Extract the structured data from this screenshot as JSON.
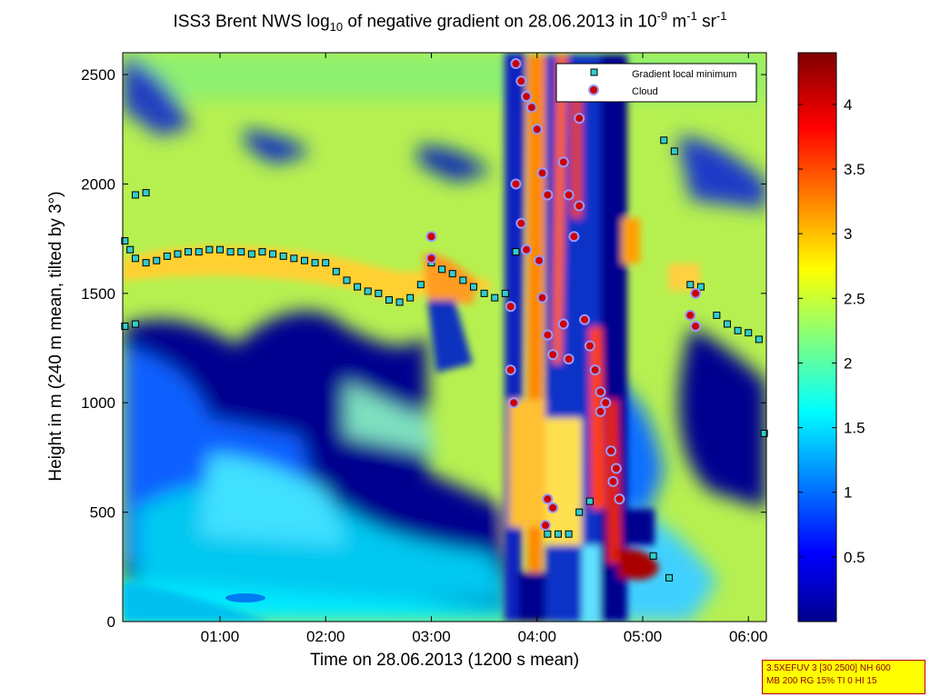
{
  "title": {
    "prefix": "ISS3 Brent NWS log",
    "sub": "10",
    "mid": " of negative gradient on 28.06.2013 in 10",
    "sup1": "-9",
    "mid2": " m",
    "sup2": "-1",
    "mid3": " sr",
    "sup3": "-1"
  },
  "info_box": {
    "line1": "3.5XEFUV 3 [30 2500] NH 600",
    "line2": "MB 200 RG 15% TI 0 HI 15"
  },
  "colors": {
    "low": "#00008f",
    "cyan": "#33ccff",
    "yellow": "#ffff40",
    "red": "#ff2000",
    "darkred": "#800000",
    "marker_gradient": "#33cccc",
    "marker_cloud": "#cc0000"
  },
  "chart_data": {
    "type": "heatmap",
    "xlabel": "Time on 28.06.2013 (1200 s mean)",
    "ylabel": "Height in m (240 m mean, tilted by 3°)",
    "xlim_hours": [
      0.08,
      6.17
    ],
    "ylim": [
      0,
      2600
    ],
    "x_ticks": [
      {
        "value": 1,
        "label": "01:00"
      },
      {
        "value": 2,
        "label": "02:00"
      },
      {
        "value": 3,
        "label": "03:00"
      },
      {
        "value": 4,
        "label": "04:00"
      },
      {
        "value": 5,
        "label": "05:00"
      },
      {
        "value": 6,
        "label": "06:00"
      }
    ],
    "y_ticks": [
      {
        "value": 0,
        "label": "0"
      },
      {
        "value": 500,
        "label": "500"
      },
      {
        "value": 1000,
        "label": "1000"
      },
      {
        "value": 1500,
        "label": "1500"
      },
      {
        "value": 2000,
        "label": "2000"
      },
      {
        "value": 2500,
        "label": "2500"
      }
    ],
    "colorbar": {
      "range": [
        0,
        4.4
      ],
      "ticks": [
        {
          "value": 0.5,
          "label": "0.5"
        },
        {
          "value": 1,
          "label": "1"
        },
        {
          "value": 1.5,
          "label": "1.5"
        },
        {
          "value": 2,
          "label": "2"
        },
        {
          "value": 2.5,
          "label": "2.5"
        },
        {
          "value": 3,
          "label": "3"
        },
        {
          "value": 3.5,
          "label": "3.5"
        },
        {
          "value": 4,
          "label": "4"
        }
      ]
    },
    "legend": {
      "position": "top-right",
      "entries": [
        {
          "label": "Gradient local minimum",
          "marker": "square"
        },
        {
          "label": "Cloud",
          "marker": "circle"
        }
      ]
    },
    "series": [
      {
        "name": "Gradient local minimum",
        "points": [
          [
            0.1,
            1740
          ],
          [
            0.15,
            1700
          ],
          [
            0.2,
            1660
          ],
          [
            0.3,
            1640
          ],
          [
            0.4,
            1650
          ],
          [
            0.5,
            1670
          ],
          [
            0.6,
            1680
          ],
          [
            0.7,
            1690
          ],
          [
            0.8,
            1690
          ],
          [
            0.9,
            1700
          ],
          [
            1.0,
            1700
          ],
          [
            1.1,
            1690
          ],
          [
            1.2,
            1690
          ],
          [
            1.3,
            1680
          ],
          [
            1.4,
            1690
          ],
          [
            1.5,
            1680
          ],
          [
            1.6,
            1670
          ],
          [
            1.7,
            1660
          ],
          [
            1.8,
            1650
          ],
          [
            1.9,
            1640
          ],
          [
            2.0,
            1640
          ],
          [
            2.1,
            1600
          ],
          [
            2.2,
            1560
          ],
          [
            2.3,
            1530
          ],
          [
            2.4,
            1510
          ],
          [
            2.5,
            1500
          ],
          [
            2.6,
            1470
          ],
          [
            2.7,
            1460
          ],
          [
            2.8,
            1480
          ],
          [
            2.9,
            1540
          ],
          [
            3.0,
            1640
          ],
          [
            3.1,
            1610
          ],
          [
            3.2,
            1590
          ],
          [
            3.3,
            1560
          ],
          [
            3.4,
            1530
          ],
          [
            3.5,
            1500
          ],
          [
            3.6,
            1480
          ],
          [
            3.7,
            1500
          ],
          [
            3.8,
            1690
          ],
          [
            0.1,
            1350
          ],
          [
            0.2,
            1360
          ],
          [
            0.2,
            1950
          ],
          [
            0.3,
            1960
          ],
          [
            5.2,
            2200
          ],
          [
            5.3,
            2150
          ],
          [
            5.45,
            1540
          ],
          [
            5.55,
            1530
          ],
          [
            5.7,
            1400
          ],
          [
            5.8,
            1360
          ],
          [
            5.9,
            1330
          ],
          [
            6.0,
            1320
          ],
          [
            6.1,
            1290
          ],
          [
            6.15,
            860
          ],
          [
            4.1,
            400
          ],
          [
            4.2,
            400
          ],
          [
            4.3,
            400
          ],
          [
            4.4,
            500
          ],
          [
            4.5,
            550
          ],
          [
            5.1,
            300
          ],
          [
            5.25,
            200
          ]
        ]
      },
      {
        "name": "Cloud",
        "points": [
          [
            3.0,
            1760
          ],
          [
            3.0,
            1660
          ],
          [
            3.75,
            1440
          ],
          [
            3.75,
            1150
          ],
          [
            3.78,
            1000
          ],
          [
            3.8,
            2550
          ],
          [
            3.85,
            2470
          ],
          [
            3.9,
            2400
          ],
          [
            3.95,
            2350
          ],
          [
            3.8,
            2000
          ],
          [
            3.85,
            1820
          ],
          [
            3.9,
            1700
          ],
          [
            4.0,
            2250
          ],
          [
            4.05,
            2050
          ],
          [
            4.1,
            1950
          ],
          [
            4.02,
            1650
          ],
          [
            4.05,
            1480
          ],
          [
            4.1,
            1310
          ],
          [
            4.15,
            1220
          ],
          [
            4.1,
            560
          ],
          [
            4.15,
            520
          ],
          [
            4.08,
            440
          ],
          [
            4.25,
            2100
          ],
          [
            4.3,
            1950
          ],
          [
            4.35,
            1760
          ],
          [
            4.25,
            1360
          ],
          [
            4.3,
            1200
          ],
          [
            4.4,
            2300
          ],
          [
            4.4,
            1900
          ],
          [
            4.45,
            1380
          ],
          [
            4.5,
            1260
          ],
          [
            4.55,
            1150
          ],
          [
            4.6,
            1050
          ],
          [
            4.6,
            960
          ],
          [
            4.65,
            1000
          ],
          [
            4.7,
            780
          ],
          [
            4.75,
            700
          ],
          [
            4.72,
            640
          ],
          [
            4.78,
            560
          ],
          [
            5.45,
            1400
          ],
          [
            5.5,
            1500
          ],
          [
            5.5,
            1350
          ]
        ]
      }
    ]
  }
}
